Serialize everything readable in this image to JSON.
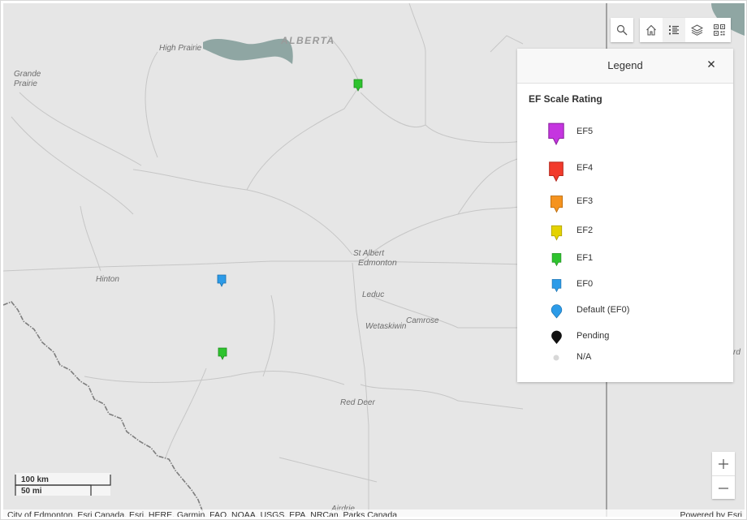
{
  "map": {
    "places": [
      {
        "id": "high-prairie",
        "label": "High Prairie"
      },
      {
        "id": "grande-prairie",
        "label": "Grande\nPrairie"
      },
      {
        "id": "alberta",
        "label": "ALBERTA"
      },
      {
        "id": "st-albert",
        "label": "St Albert"
      },
      {
        "id": "edmonton",
        "label": "Edmonton"
      },
      {
        "id": "hinton",
        "label": "Hinton"
      },
      {
        "id": "leduc",
        "label": "Leduc"
      },
      {
        "id": "wetaskiwin",
        "label": "Wetaskiwin"
      },
      {
        "id": "camrose",
        "label": "Camrose"
      },
      {
        "id": "red-deer",
        "label": "Red Deer"
      },
      {
        "id": "airdrie",
        "label": "Airdrie"
      },
      {
        "id": "partial-right",
        "label": "rd"
      }
    ],
    "markers": [
      {
        "rating": "EF1",
        "color": "#2ec32e"
      },
      {
        "rating": "EF0",
        "color": "#2c9be8"
      },
      {
        "rating": "EF1",
        "color": "#2ec32e"
      }
    ],
    "colors": {
      "land": "#e6e6e6",
      "water": "#8fa6a3",
      "roads": "#c6c6c6",
      "border": "#6e6e6e"
    }
  },
  "toolbar": {
    "icons": [
      "search-icon",
      "home-icon",
      "legend-icon",
      "layers-icon",
      "qr-code-icon"
    ],
    "active": "legend-icon"
  },
  "legend": {
    "title": "Legend",
    "subtitle": "EF Scale Rating",
    "items": [
      {
        "label": "EF5",
        "color": "#c535e0",
        "shape": "pin-square"
      },
      {
        "label": "EF4",
        "color": "#f23a2b",
        "shape": "pin-square"
      },
      {
        "label": "EF3",
        "color": "#f5931f",
        "shape": "pin-square"
      },
      {
        "label": "EF2",
        "color": "#e4d200",
        "shape": "pin-square"
      },
      {
        "label": "EF1",
        "color": "#2ec32e",
        "shape": "pin-square"
      },
      {
        "label": "EF0",
        "color": "#2c9be8",
        "shape": "pin-square"
      },
      {
        "label": "Default (EF0)",
        "color": "#2c9be8",
        "shape": "pin-round"
      },
      {
        "label": "Pending",
        "color": "#111111",
        "shape": "pin-round"
      },
      {
        "label": "N/A",
        "color": "#d8d8d8",
        "shape": "dot"
      }
    ]
  },
  "scale": {
    "km": "100 km",
    "mi": "50 mi"
  },
  "zoom": {
    "in": "+",
    "out": "—"
  },
  "attribution": {
    "sources": "City of Edmonton, Esri Canada, Esri, HERE, Garmin, FAO, NOAA, USGS, EPA, NRCan, Parks Canada",
    "powered": "Powered by Esri"
  }
}
